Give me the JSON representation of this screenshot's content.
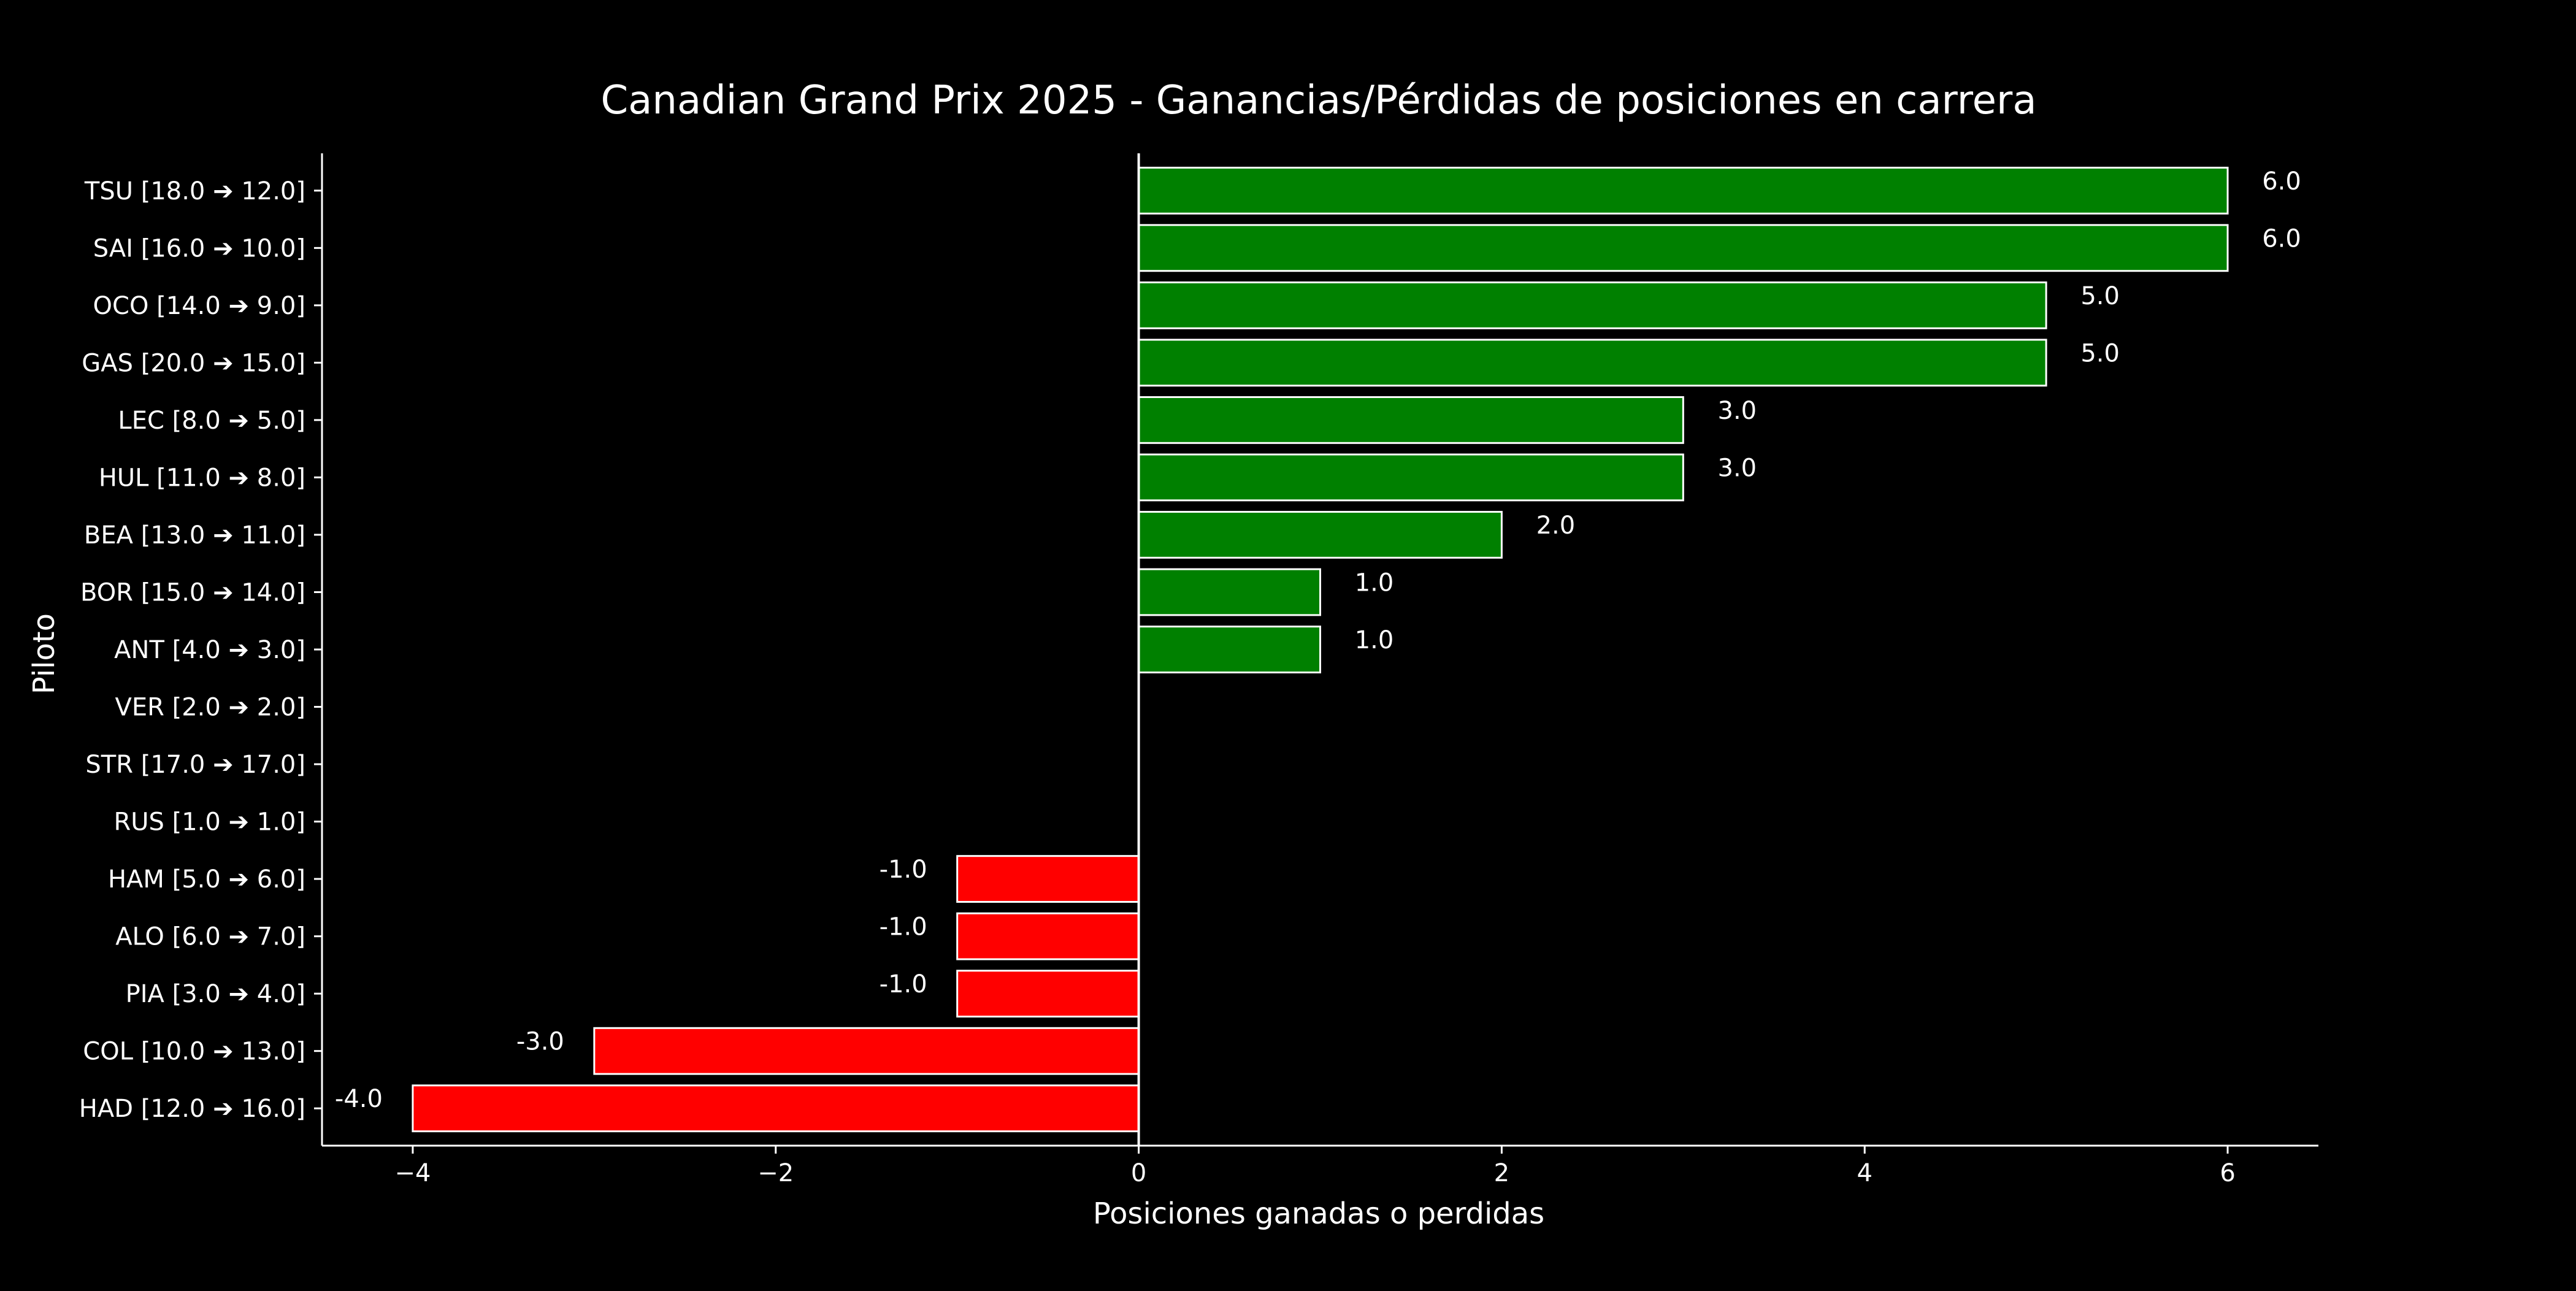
{
  "chart_data": {
    "type": "bar",
    "orientation": "horizontal",
    "title": "Canadian Grand Prix 2025 - Ganancias/Pérdidas de posiciones en carrera",
    "xlabel": "Posiciones ganadas o perdidas",
    "ylabel": "Piloto",
    "xlim": [
      -4.5,
      6.5
    ],
    "xticks": [
      -4,
      -2,
      0,
      2,
      4,
      6
    ],
    "xtick_labels": [
      "−4",
      "−2",
      "0",
      "2",
      "4",
      "6"
    ],
    "grid": false,
    "legend": "none",
    "categories": [
      "TSU [18.0 ➔ 12.0]",
      "SAI [16.0 ➔ 10.0]",
      "OCO [14.0 ➔ 9.0]",
      "GAS [20.0 ➔ 15.0]",
      "LEC [8.0 ➔ 5.0]",
      "HUL [11.0 ➔ 8.0]",
      "BEA [13.0 ➔ 11.0]",
      "BOR [15.0 ➔ 14.0]",
      "ANT [4.0 ➔ 3.0]",
      "VER [2.0 ➔ 2.0]",
      "STR [17.0 ➔ 17.0]",
      "RUS [1.0 ➔ 1.0]",
      "HAM [5.0 ➔ 6.0]",
      "ALO [6.0 ➔ 7.0]",
      "PIA [3.0 ➔ 4.0]",
      "COL [10.0 ➔ 13.0]",
      "HAD [12.0 ➔ 16.0]"
    ],
    "values": [
      6,
      6,
      5,
      5,
      3,
      3,
      2,
      1,
      1,
      0,
      0,
      0,
      -1,
      -1,
      -1,
      -3,
      -4
    ],
    "value_labels": [
      "6.0",
      "6.0",
      "5.0",
      "5.0",
      "3.0",
      "3.0",
      "2.0",
      "1.0",
      "1.0",
      "",
      "",
      "",
      "-1.0",
      "-1.0",
      "-1.0",
      "-3.0",
      "-4.0"
    ],
    "colors": {
      "positive": "#008000",
      "negative": "#ff0000",
      "bar_edge": "#ffffff",
      "background": "#000000",
      "axis": "#ffffff",
      "text": "#ffffff"
    }
  }
}
